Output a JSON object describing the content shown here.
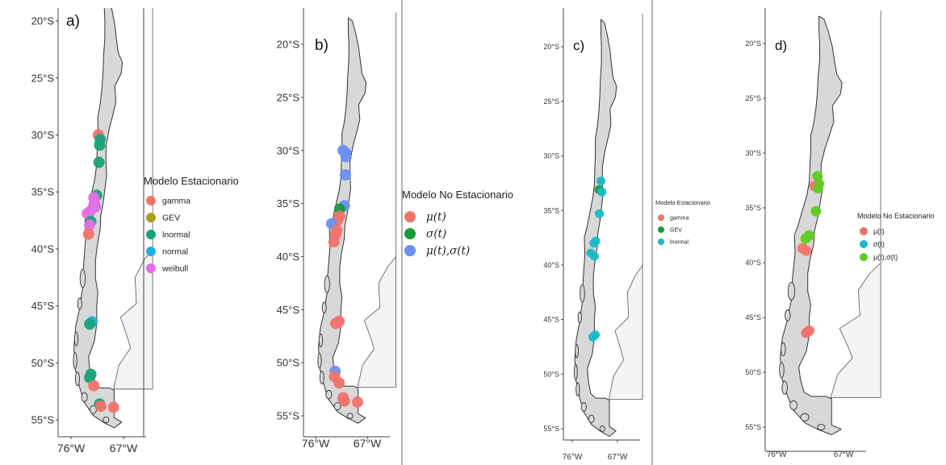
{
  "panels": [
    {
      "id": "a",
      "label": "a)",
      "lat_ticks": [
        "20°S",
        "25°S",
        "30°S",
        "35°S",
        "40°S",
        "45°S",
        "50°S",
        "55°S"
      ],
      "lon_ticks": [
        "76°W",
        "67°W"
      ],
      "legend": {
        "title": "Modelo Estacionario",
        "items": [
          {
            "label": "gamma",
            "color": "#f0736a"
          },
          {
            "label": "GEV",
            "color": "#a8a01a"
          },
          {
            "label": "lnormal",
            "color": "#19a37a"
          },
          {
            "label": "normal",
            "color": "#1eaee8"
          },
          {
            "label": "weibull",
            "color": "#e46ee4"
          }
        ]
      },
      "points": [
        {
          "lat": -30.0,
          "lon": -71.3,
          "cat": 0
        },
        {
          "lat": -30.4,
          "lon": -71.0,
          "cat": 2
        },
        {
          "lat": -30.9,
          "lon": -71.1,
          "cat": 2
        },
        {
          "lat": -32.4,
          "lon": -71.2,
          "cat": 2
        },
        {
          "lat": -35.3,
          "lon": -71.6,
          "cat": 2
        },
        {
          "lat": -35.5,
          "lon": -72.1,
          "cat": 4
        },
        {
          "lat": -36.0,
          "lon": -72.0,
          "cat": 4
        },
        {
          "lat": -36.3,
          "lon": -71.8,
          "cat": 4
        },
        {
          "lat": -36.7,
          "lon": -72.7,
          "cat": 4
        },
        {
          "lat": -36.9,
          "lon": -73.2,
          "cat": 4
        },
        {
          "lat": -37.6,
          "lon": -72.6,
          "cat": 2
        },
        {
          "lat": -37.9,
          "lon": -72.8,
          "cat": 4
        },
        {
          "lat": -38.7,
          "lon": -73.0,
          "cat": 0
        },
        {
          "lat": -46.4,
          "lon": -72.4,
          "cat": 3
        },
        {
          "lat": -46.6,
          "lon": -72.8,
          "cat": 2
        },
        {
          "lat": -51.0,
          "lon": -72.6,
          "cat": 2
        },
        {
          "lat": -51.3,
          "lon": -72.8,
          "cat": 2
        },
        {
          "lat": -52.0,
          "lon": -72.1,
          "cat": 0
        },
        {
          "lat": -53.6,
          "lon": -71.1,
          "cat": 2
        },
        {
          "lat": -53.8,
          "lon": -70.9,
          "cat": 0
        },
        {
          "lat": -53.9,
          "lon": -68.7,
          "cat": 0
        }
      ]
    },
    {
      "id": "b",
      "label": "b)",
      "lat_ticks": [
        "20°S",
        "25°S",
        "30°S",
        "35°S",
        "40°S",
        "45°S",
        "50°S",
        "55°S"
      ],
      "lon_ticks": [
        "76°W",
        "67°W"
      ],
      "legend": {
        "title": "Modelo No Estacionario",
        "items": [
          {
            "label": "μ(t)",
            "color": "#f0736a"
          },
          {
            "label": "σ(t)",
            "color": "#1a9b3c"
          },
          {
            "label": "μ(t),σ(t)",
            "color": "#6a8ff0"
          }
        ]
      },
      "points": [
        {
          "lat": -30.0,
          "lon": -71.2,
          "cat": 2
        },
        {
          "lat": -30.2,
          "lon": -70.8,
          "cat": 2
        },
        {
          "lat": -30.6,
          "lon": -70.7,
          "cat": 2
        },
        {
          "lat": -32.3,
          "lon": -70.8,
          "cat": 2
        },
        {
          "lat": -35.2,
          "lon": -71.0,
          "cat": 2
        },
        {
          "lat": -35.5,
          "lon": -71.8,
          "cat": 1
        },
        {
          "lat": -36.2,
          "lon": -71.8,
          "cat": 0
        },
        {
          "lat": -36.6,
          "lon": -72.2,
          "cat": 0
        },
        {
          "lat": -36.9,
          "lon": -73.2,
          "cat": 2
        },
        {
          "lat": -37.5,
          "lon": -72.3,
          "cat": 0
        },
        {
          "lat": -37.9,
          "lon": -72.5,
          "cat": 0
        },
        {
          "lat": -38.6,
          "lon": -72.8,
          "cat": 0
        },
        {
          "lat": -46.1,
          "lon": -71.9,
          "cat": 0
        },
        {
          "lat": -46.3,
          "lon": -72.5,
          "cat": 0
        },
        {
          "lat": -50.8,
          "lon": -72.6,
          "cat": 2
        },
        {
          "lat": -51.3,
          "lon": -72.7,
          "cat": 0
        },
        {
          "lat": -51.9,
          "lon": -71.9,
          "cat": 0
        },
        {
          "lat": -53.3,
          "lon": -71.2,
          "cat": 0
        },
        {
          "lat": -53.6,
          "lon": -71.0,
          "cat": 0
        },
        {
          "lat": -53.7,
          "lon": -68.7,
          "cat": 0
        }
      ]
    },
    {
      "id": "c",
      "label": "c)",
      "lat_ticks": [
        "20°S",
        "25°S",
        "30°S",
        "35°S",
        "40°S",
        "45°S",
        "50°S",
        "55°S"
      ],
      "lon_ticks": [
        "76°W",
        "67°W"
      ],
      "legend": {
        "title": "Modelo Estacionario",
        "items": [
          {
            "label": "gamma",
            "color": "#f0736a"
          },
          {
            "label": "GEV",
            "color": "#1a9b3c"
          },
          {
            "label": "lnormal",
            "color": "#1ab8c8"
          }
        ]
      },
      "points": [
        {
          "lat": -32.3,
          "lon": -70.3,
          "cat": 2
        },
        {
          "lat": -33.1,
          "lon": -70.7,
          "cat": 1
        },
        {
          "lat": -33.3,
          "lon": -70.1,
          "cat": 2
        },
        {
          "lat": -35.3,
          "lon": -70.6,
          "cat": 2
        },
        {
          "lat": -37.8,
          "lon": -71.3,
          "cat": 2
        },
        {
          "lat": -38.0,
          "lon": -71.7,
          "cat": 2
        },
        {
          "lat": -38.9,
          "lon": -72.3,
          "cat": 2
        },
        {
          "lat": -39.2,
          "lon": -71.6,
          "cat": 2
        },
        {
          "lat": -46.4,
          "lon": -71.4,
          "cat": 2
        },
        {
          "lat": -46.6,
          "lon": -71.9,
          "cat": 2
        }
      ]
    },
    {
      "id": "d",
      "label": "d)",
      "lat_ticks": [
        "20°S",
        "25°S",
        "30°S",
        "35°S",
        "40°S",
        "45°S",
        "50°S",
        "55°S"
      ],
      "lon_ticks": [
        "76°W",
        "67°W"
      ],
      "legend": {
        "title": "Modelo No Estacionario",
        "items": [
          {
            "label": "μ(t)",
            "color": "#f0736a"
          },
          {
            "label": "σ(t)",
            "color": "#1ab8c8"
          },
          {
            "label": "μ(t),σ(t)",
            "color": "#5ccc20"
          }
        ]
      },
      "points": [
        {
          "lat": -32.1,
          "lon": -70.5,
          "cat": 2
        },
        {
          "lat": -32.8,
          "lon": -70.3,
          "cat": 2
        },
        {
          "lat": -33.0,
          "lon": -70.9,
          "cat": 0
        },
        {
          "lat": -33.2,
          "lon": -70.4,
          "cat": 2
        },
        {
          "lat": -35.3,
          "lon": -70.7,
          "cat": 2
        },
        {
          "lat": -37.5,
          "lon": -71.6,
          "cat": 2
        },
        {
          "lat": -37.8,
          "lon": -72.1,
          "cat": 2
        },
        {
          "lat": -38.7,
          "lon": -72.5,
          "cat": 0
        },
        {
          "lat": -38.9,
          "lon": -72.0,
          "cat": 0
        },
        {
          "lat": -46.2,
          "lon": -71.6,
          "cat": 0
        },
        {
          "lat": -46.4,
          "lon": -72.0,
          "cat": 0
        }
      ]
    }
  ]
}
